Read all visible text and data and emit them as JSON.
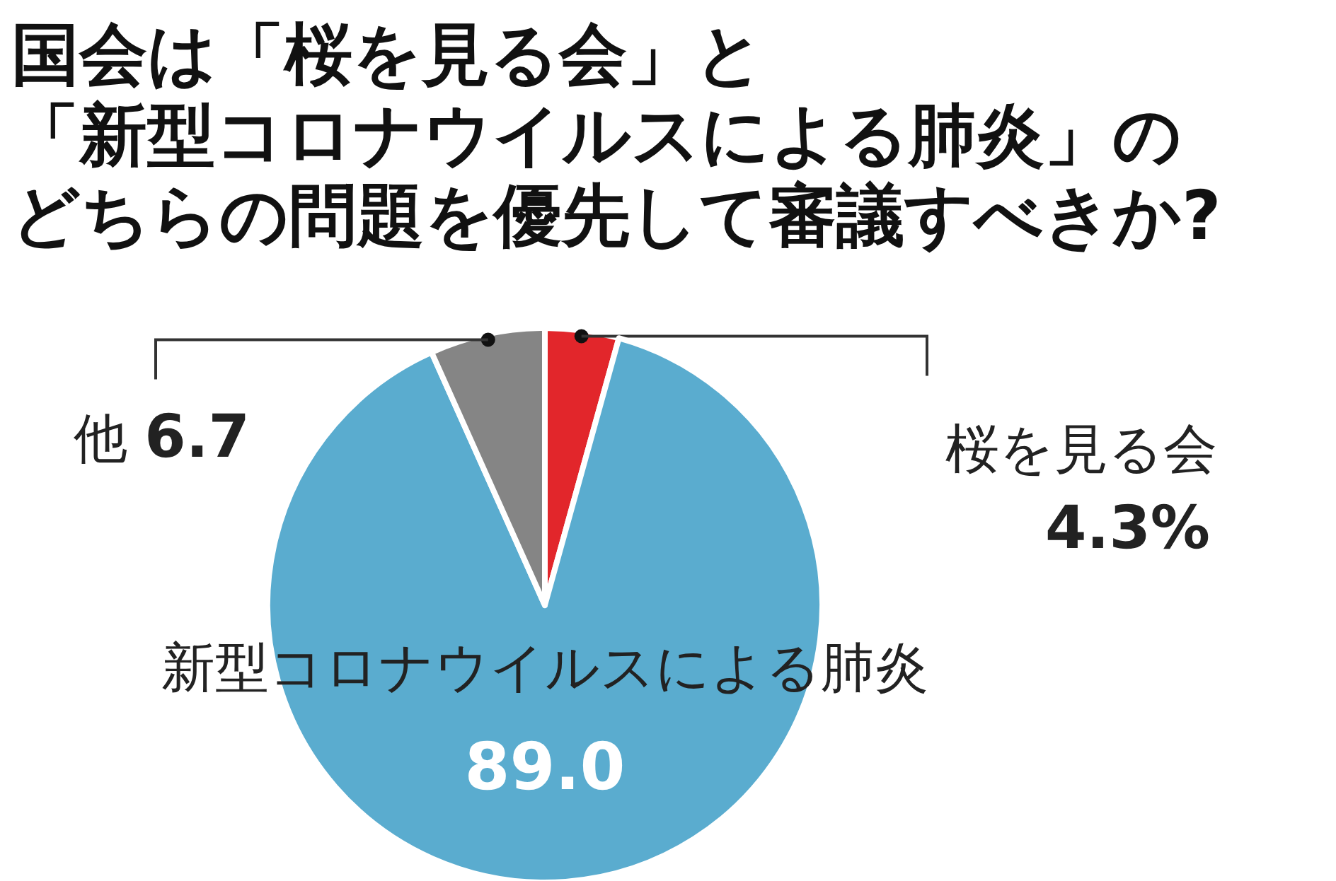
{
  "chart_data": {
    "type": "pie",
    "title": "国会は「桜を見る会」と",
    "subtitle": "「新型コロナウイルスによる肺炎」のどちらの問題を優先して審議すべきか?",
    "categories": [
      "桜を見る会",
      "新型コロナウイルスによる肺炎",
      "他"
    ],
    "values": [
      4.3,
      89.0,
      6.7
    ],
    "colors": [
      "#e2262b",
      "#5aaccf",
      "#858585"
    ],
    "value_labels": [
      "4.3%",
      "89.0",
      "6.7"
    ]
  }
}
